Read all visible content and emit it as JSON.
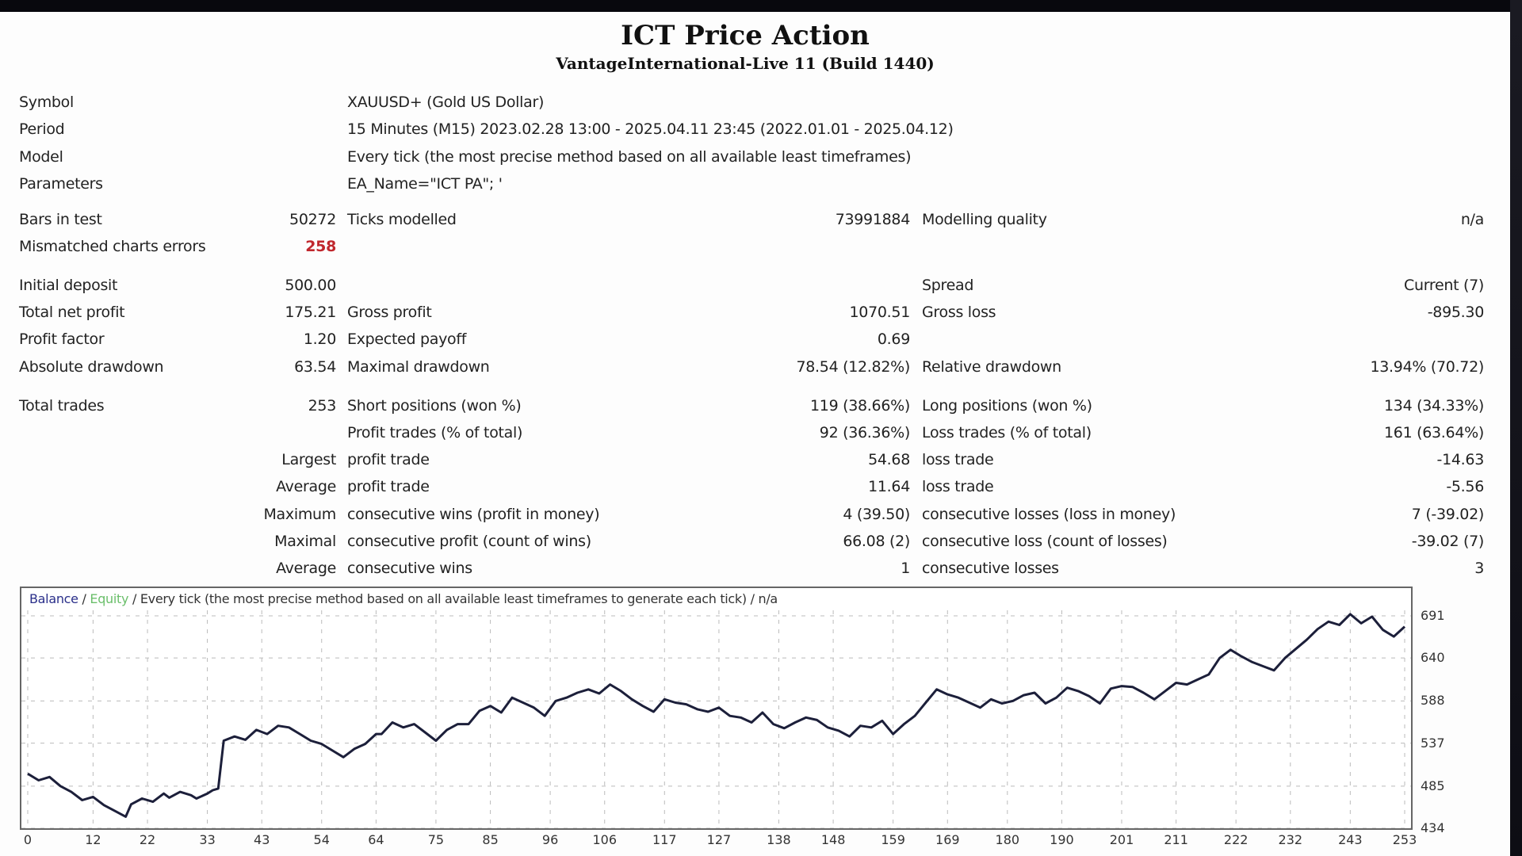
{
  "report": {
    "title": "ICT Price Action",
    "subtitle": "VantageInternational-Live 11 (Build 1440)"
  },
  "info": {
    "symbol_label": "Symbol",
    "symbol_value": "XAUUSD+ (Gold US Dollar)",
    "period_label": "Period",
    "period_value": "15 Minutes (M15) 2023.02.28 13:00 - 2025.04.11 23:45 (2022.01.01 - 2025.04.12)",
    "model_label": "Model",
    "model_value": "Every tick (the most precise method based on all available least timeframes)",
    "parameters_label": "Parameters",
    "parameters_value": "EA_Name=\"ICT PA\"; '"
  },
  "test": {
    "bars_label": "Bars in test",
    "bars_value": "50272",
    "ticks_label": "Ticks modelled",
    "ticks_value": "73991884",
    "quality_label": "Modelling quality",
    "quality_value": "n/a",
    "mismatch_label": "Mismatched charts errors",
    "mismatch_value": "258"
  },
  "results": {
    "initial_deposit_label": "Initial deposit",
    "initial_deposit_value": "500.00",
    "spread_label": "Spread",
    "spread_value": "Current (7)",
    "total_net_profit_label": "Total net profit",
    "total_net_profit_value": "175.21",
    "gross_profit_label": "Gross profit",
    "gross_profit_value": "1070.51",
    "gross_loss_label": "Gross loss",
    "gross_loss_value": "-895.30",
    "profit_factor_label": "Profit factor",
    "profit_factor_value": "1.20",
    "expected_payoff_label": "Expected payoff",
    "expected_payoff_value": "0.69",
    "absolute_drawdown_label": "Absolute drawdown",
    "absolute_drawdown_value": "63.54",
    "maximal_drawdown_label": "Maximal drawdown",
    "maximal_drawdown_value": "78.54 (12.82%)",
    "relative_drawdown_label": "Relative drawdown",
    "relative_drawdown_value": "13.94% (70.72)"
  },
  "trades": {
    "total_trades_label": "Total trades",
    "total_trades_value": "253",
    "short_label": "Short positions (won %)",
    "short_value": "119 (38.66%)",
    "long_label": "Long positions (won %)",
    "long_value": "134 (34.33%)",
    "profit_trades_label": "Profit trades (% of total)",
    "profit_trades_value": "92 (36.36%)",
    "loss_trades_label": "Loss trades (% of total)",
    "loss_trades_value": "161 (63.64%)",
    "largest_label": "Largest",
    "largest_profit_label": "profit trade",
    "largest_profit_value": "54.68",
    "largest_loss_label": "loss trade",
    "largest_loss_value": "-14.63",
    "average_label": "Average",
    "average_profit_label": "profit trade",
    "average_profit_value": "11.64",
    "average_loss_label": "loss trade",
    "average_loss_value": "-5.56",
    "maximum_label": "Maximum",
    "max_cons_wins_label": "consecutive wins (profit in money)",
    "max_cons_wins_value": "4 (39.50)",
    "max_cons_losses_label": "consecutive losses (loss in money)",
    "max_cons_losses_value": "7 (-39.02)",
    "maximal_label": "Maximal",
    "maximal_cons_profit_label": "consecutive profit (count of wins)",
    "maximal_cons_profit_value": "66.08 (2)",
    "maximal_cons_loss_label": "consecutive loss (count of losses)",
    "maximal_cons_loss_value": "-39.02 (7)",
    "avg_label": "Average",
    "avg_cons_wins_label": "consecutive wins",
    "avg_cons_wins_value": "1",
    "avg_cons_losses_label": "consecutive losses",
    "avg_cons_losses_value": "3"
  },
  "chart": {
    "legend_balance": "Balance",
    "legend_sep1": " / ",
    "legend_equity": "Equity",
    "legend_rest": " / Every tick (the most precise method based on all available least timeframes to generate each tick) / n/a",
    "colors": {
      "balance": "#1c1f3a",
      "equity": "#6bbf6b",
      "grid": "#bbbbbb",
      "mismatch": "#c0272d"
    }
  },
  "chart_data": {
    "type": "line",
    "title": "Balance / Equity / Every tick (the most precise method based on all available least timeframes to generate each tick) / n/a",
    "xlabel": "",
    "ylabel": "",
    "x_ticks": [
      0,
      12,
      22,
      33,
      43,
      54,
      64,
      75,
      85,
      96,
      106,
      117,
      127,
      138,
      148,
      159,
      169,
      180,
      190,
      201,
      211,
      222,
      232,
      243,
      253
    ],
    "y_ticks": [
      434,
      485,
      537,
      588,
      640,
      691
    ],
    "xlim": [
      0,
      253
    ],
    "ylim": [
      434,
      705
    ],
    "grid": true,
    "legend": [
      "Balance",
      "Equity"
    ],
    "series": [
      {
        "name": "Balance",
        "x": [
          0,
          2,
          4,
          6,
          8,
          10,
          12,
          14,
          16,
          18,
          19,
          21,
          23,
          25,
          26,
          28,
          30,
          31,
          33,
          34,
          35,
          36,
          38,
          40,
          42,
          44,
          46,
          48,
          50,
          52,
          54,
          56,
          58,
          60,
          62,
          64,
          65,
          67,
          69,
          71,
          73,
          75,
          77,
          79,
          81,
          83,
          85,
          87,
          89,
          91,
          93,
          95,
          97,
          99,
          101,
          103,
          105,
          107,
          109,
          111,
          113,
          115,
          117,
          119,
          121,
          123,
          125,
          127,
          129,
          131,
          133,
          135,
          137,
          139,
          141,
          143,
          145,
          147,
          149,
          151,
          153,
          155,
          157,
          159,
          161,
          163,
          165,
          167,
          169,
          171,
          173,
          175,
          177,
          179,
          181,
          183,
          185,
          187,
          189,
          191,
          193,
          195,
          197,
          199,
          201,
          203,
          205,
          207,
          209,
          211,
          213,
          215,
          217,
          219,
          221,
          223,
          225,
          227,
          229,
          231,
          233,
          235,
          237,
          239,
          241,
          243,
          245,
          247,
          249,
          251,
          253
        ],
        "values": [
          500,
          492,
          496,
          485,
          478,
          468,
          472,
          462,
          455,
          448,
          463,
          470,
          466,
          476,
          471,
          478,
          474,
          470,
          476,
          480,
          482,
          540,
          545,
          541,
          553,
          548,
          558,
          556,
          548,
          540,
          536,
          528,
          520,
          530,
          536,
          548,
          548,
          562,
          556,
          560,
          550,
          540,
          553,
          560,
          560,
          576,
          582,
          574,
          592,
          586,
          580,
          570,
          588,
          592,
          598,
          602,
          597,
          608,
          600,
          590,
          582,
          575,
          590,
          586,
          584,
          578,
          575,
          580,
          570,
          568,
          562,
          574,
          560,
          555,
          562,
          568,
          565,
          556,
          552,
          545,
          558,
          556,
          564,
          548,
          560,
          570,
          586,
          602,
          596,
          592,
          586,
          580,
          590,
          585,
          588,
          595,
          598,
          585,
          592,
          604,
          600,
          594,
          585,
          603,
          606,
          605,
          598,
          590,
          600,
          610,
          608,
          614,
          620,
          640,
          650,
          642,
          635,
          630,
          625,
          640,
          651,
          662,
          675,
          684,
          680,
          693,
          682,
          690,
          674,
          666,
          678
        ]
      }
    ]
  }
}
